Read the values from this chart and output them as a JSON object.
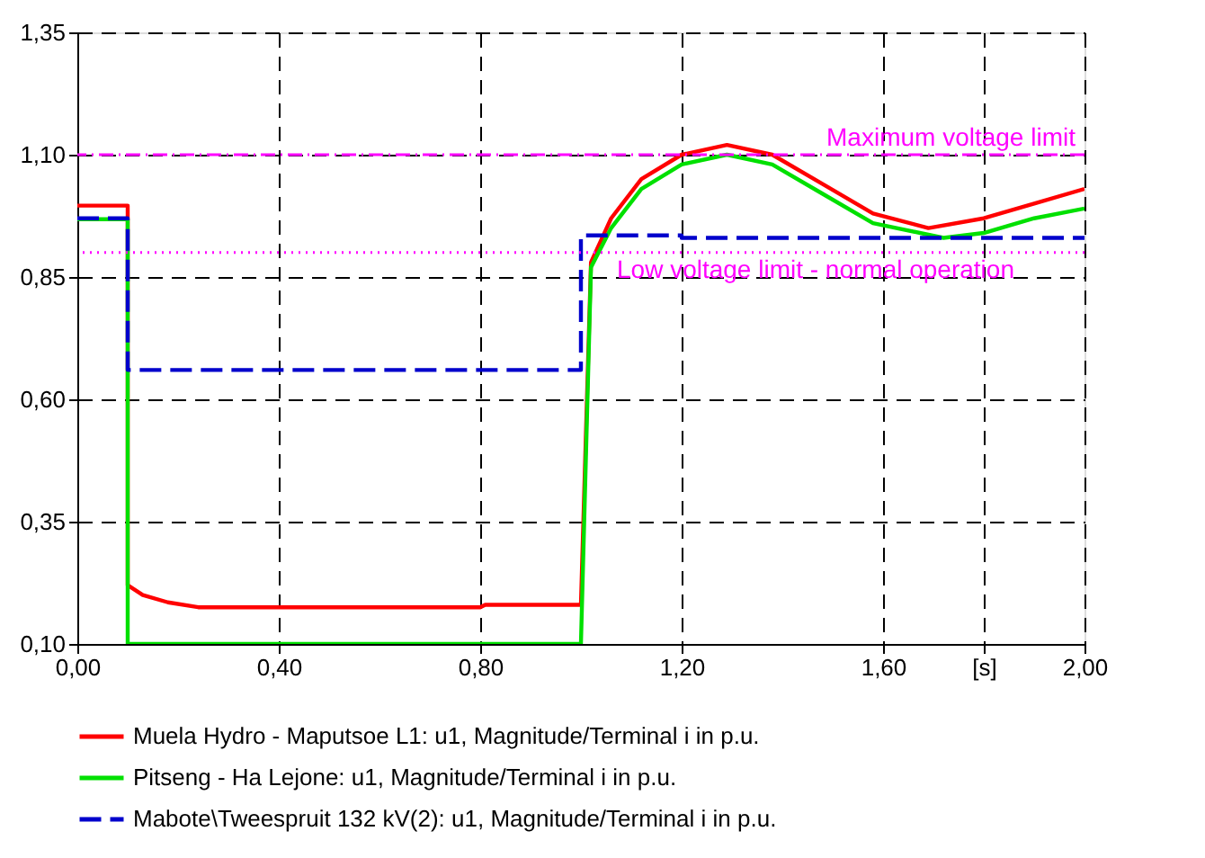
{
  "chart_data": {
    "type": "line",
    "xlim": [
      0,
      2
    ],
    "ylim": [
      0.1,
      1.35
    ],
    "xticks": [
      {
        "value": 0,
        "label": "0,00"
      },
      {
        "value": 0.4,
        "label": "0,40"
      },
      {
        "value": 0.8,
        "label": "0,80"
      },
      {
        "value": 1.2,
        "label": "1,20"
      },
      {
        "value": 1.6,
        "label": "1,60"
      },
      {
        "value": 1.8,
        "label": "[s]"
      },
      {
        "value": 2,
        "label": "2,00"
      }
    ],
    "yticks": [
      {
        "value": 0.1,
        "label": "0,10"
      },
      {
        "value": 0.35,
        "label": "0,35"
      },
      {
        "value": 0.6,
        "label": "0,60"
      },
      {
        "value": 0.85,
        "label": "0,85"
      },
      {
        "value": 1.1,
        "label": "1,10"
      },
      {
        "value": 1.35,
        "label": "1,35"
      }
    ],
    "grid": true,
    "legend": "bottom",
    "series": [
      {
        "name": "Muela Hydro - Maputsoe L1: u1, Magnitude/Terminal i in p.u.",
        "color": "#ff0000",
        "line_style": "solid",
        "x": [
          0,
          0.1,
          0.1,
          0.13,
          0.18,
          0.24,
          0.8,
          0.81,
          1.0,
          1.02,
          1.06,
          1.12,
          1.2,
          1.29,
          1.38,
          1.48,
          1.58,
          1.69,
          1.8,
          1.9,
          2.0
        ],
        "values": [
          0.996,
          0.996,
          0.22,
          0.2,
          0.185,
          0.175,
          0.175,
          0.18,
          0.18,
          0.88,
          0.97,
          1.05,
          1.1,
          1.12,
          1.1,
          1.04,
          0.98,
          0.95,
          0.97,
          1.0,
          1.03
        ]
      },
      {
        "name": "Pitseng - Ha Lejone: u1, Magnitude/Terminal i in p.u.",
        "color": "#00e000",
        "line_style": "solid",
        "x": [
          0,
          0.1,
          0.1,
          1.0,
          1.0,
          1.02,
          1.06,
          1.12,
          1.2,
          1.29,
          1.38,
          1.48,
          1.58,
          1.72,
          1.8,
          1.9,
          2.0
        ],
        "values": [
          0.968,
          0.968,
          0.1,
          0.1,
          0.1,
          0.87,
          0.95,
          1.03,
          1.08,
          1.1,
          1.08,
          1.02,
          0.96,
          0.93,
          0.94,
          0.97,
          0.99
        ]
      },
      {
        "name": "Mabote\\Tweespruit 132 kV(2): u1, Magnitude/Terminal i in p.u.",
        "color": "#0000cc",
        "line_style": "dashed",
        "x": [
          0,
          0.1,
          0.1,
          1.0,
          1.0,
          1.2,
          1.2,
          2.0
        ],
        "values": [
          0.97,
          0.97,
          0.66,
          0.66,
          0.935,
          0.935,
          0.93,
          0.93
        ]
      }
    ],
    "ref_lines": [
      {
        "axis": "y",
        "value": 1.1,
        "label": "Maximum voltage limit",
        "color": "#ff00ff",
        "line_style": "dashdot"
      },
      {
        "axis": "y",
        "value": 0.9,
        "label": "Low voltage limit - normal operation",
        "color": "#ff00ff",
        "line_style": "dotted"
      }
    ]
  }
}
